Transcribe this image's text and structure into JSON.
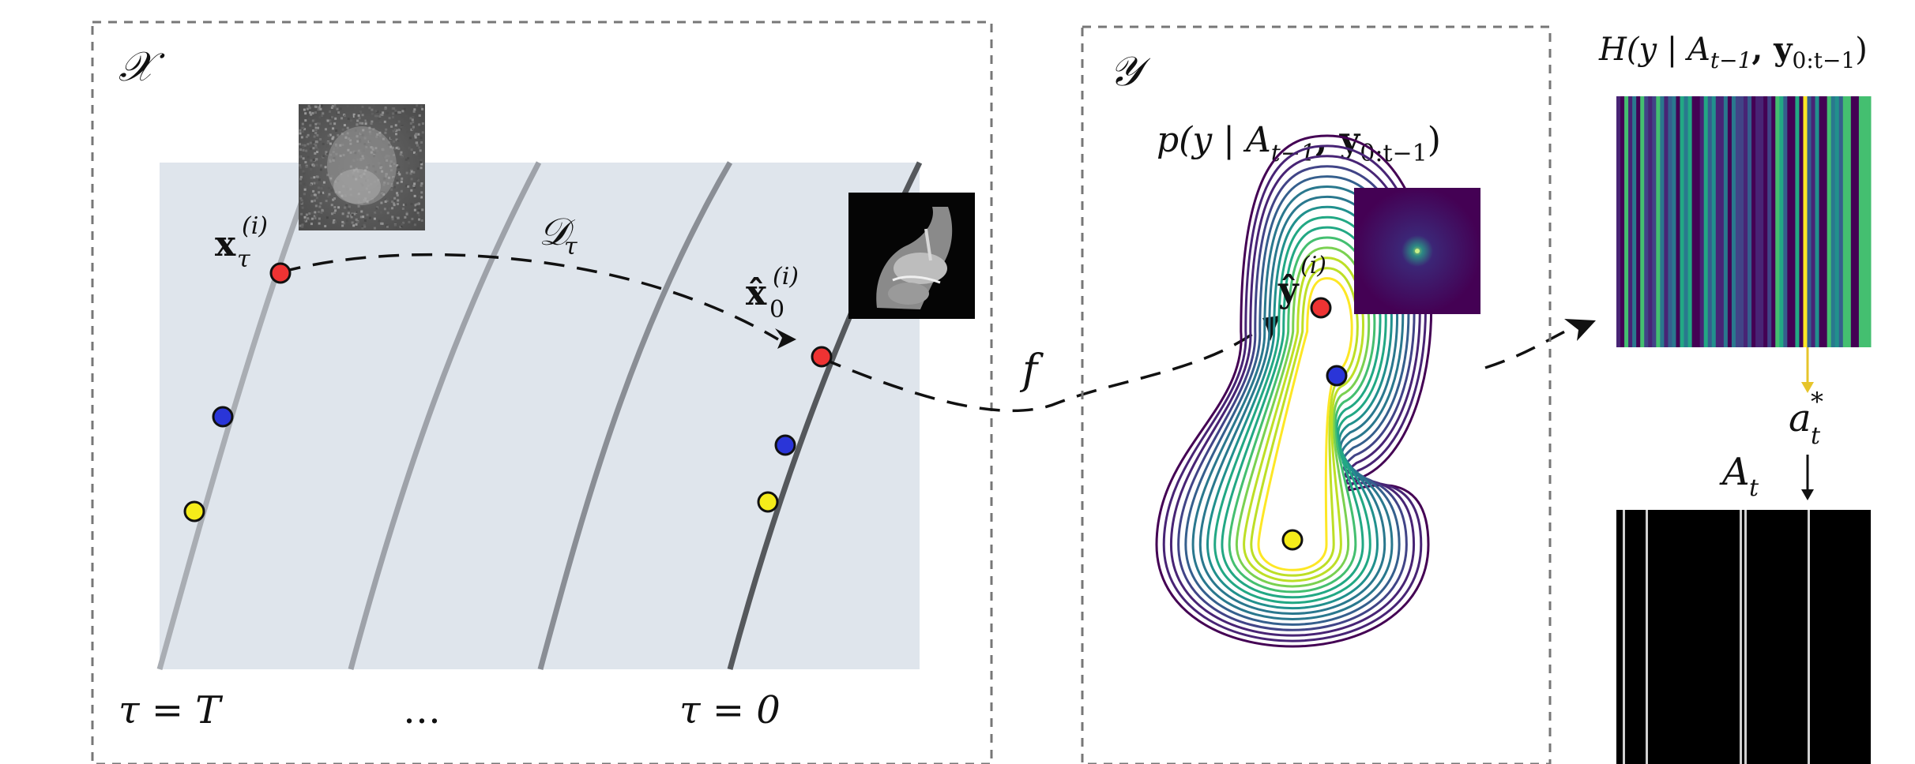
{
  "x_panel": {
    "label": "𝒳",
    "label_noisy_point": "x",
    "label_noisy_point_sub": "τ",
    "label_noisy_point_sup": "(i)",
    "label_denoiser": "𝒟",
    "label_denoiser_sub": "τ",
    "label_clean_point": "x̂",
    "label_clean_point_sub": "0",
    "label_clean_point_sup": "(i)",
    "tau_T": "τ = T",
    "ellipsis": "…",
    "tau_0": "τ = 0"
  },
  "mapping_label": "f",
  "y_panel": {
    "label": "𝒴",
    "density_label": "p(y | A",
    "density_label_sub1": "t−1",
    "density_label_mid": ", y",
    "density_label_sub2": "0:t−1",
    "density_label_end": ")",
    "point_label": "ŷ",
    "point_label_sup": "(i)"
  },
  "right_panel": {
    "entropy_label": "H(y | A",
    "entropy_label_sub1": "t−1",
    "entropy_label_mid": ", y",
    "entropy_label_sub2": "0:t−1",
    "entropy_label_end": ")",
    "action_label": "a",
    "action_label_sub": "t",
    "action_label_sup": "*",
    "mask_label": "A",
    "mask_label_sub": "t"
  },
  "colors": {
    "dot_red": "#ee3333",
    "dot_blue": "#2a35d8",
    "dot_yellow": "#f5ec1a",
    "manifold_bg": "#dfe5ec",
    "arrow_yellow": "#e6c42a",
    "viridis_dark": "#440154"
  }
}
